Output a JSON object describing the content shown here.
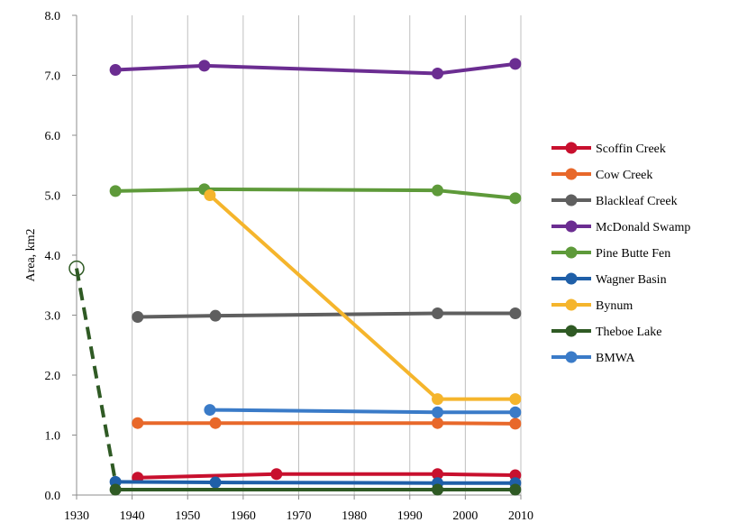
{
  "chart_data": {
    "type": "line",
    "title": "",
    "xlabel": "",
    "ylabel": "Area, km2",
    "xlim": [
      1930,
      2010
    ],
    "ylim": [
      0,
      8
    ],
    "x_ticks": [
      "1930",
      "1940",
      "1950",
      "1960",
      "1970",
      "1980",
      "1990",
      "2000",
      "2010"
    ],
    "y_ticks": [
      "0.0",
      "1.0",
      "2.0",
      "3.0",
      "4.0",
      "5.0",
      "6.0",
      "7.0",
      "8.0"
    ],
    "grid": "vertical",
    "legend_position": "right",
    "series": [
      {
        "name": "Scoffin Creek",
        "color": "#c8102e",
        "points": [
          [
            1941,
            0.29
          ],
          [
            1966,
            0.35
          ],
          [
            1995,
            0.35
          ],
          [
            2009,
            0.33
          ]
        ]
      },
      {
        "name": "Cow Creek",
        "color": "#e8682a",
        "points": [
          [
            1941,
            1.2
          ],
          [
            1955,
            1.2
          ],
          [
            1995,
            1.2
          ],
          [
            2009,
            1.19
          ]
        ]
      },
      {
        "name": "Blackleaf Creek",
        "color": "#5f5f5f",
        "points": [
          [
            1941,
            2.97
          ],
          [
            1955,
            2.99
          ],
          [
            1995,
            3.03
          ],
          [
            2009,
            3.03
          ]
        ]
      },
      {
        "name": "McDonald Swamp",
        "color": "#6b2d91",
        "points": [
          [
            1937,
            7.09
          ],
          [
            1953,
            7.16
          ],
          [
            1995,
            7.03
          ],
          [
            2009,
            7.19
          ]
        ]
      },
      {
        "name": "Pine Butte Fen",
        "color": "#5e9a3a",
        "points": [
          [
            1937,
            5.07
          ],
          [
            1953,
            5.1
          ],
          [
            1995,
            5.08
          ],
          [
            2009,
            4.95
          ]
        ]
      },
      {
        "name": "Wagner Basin",
        "color": "#1f5fa8",
        "points": [
          [
            1937,
            0.22
          ],
          [
            1955,
            0.21
          ],
          [
            1995,
            0.2
          ],
          [
            2009,
            0.2
          ]
        ]
      },
      {
        "name": "Bynum",
        "color": "#f5b52c",
        "points": [
          [
            1954,
            5.0
          ],
          [
            1995,
            1.6
          ],
          [
            2009,
            1.6
          ]
        ]
      },
      {
        "name": "Theboe Lake",
        "color": "#2f5a24",
        "points": [
          [
            1937,
            0.09
          ],
          [
            1995,
            0.09
          ],
          [
            2009,
            0.09
          ]
        ],
        "dashed_lead": {
          "from": [
            1930,
            3.78
          ],
          "to": [
            1937,
            0.22
          ]
        }
      },
      {
        "name": "BMWA",
        "color": "#3a7bc8",
        "points": [
          [
            1954,
            1.42
          ],
          [
            1995,
            1.38
          ],
          [
            2009,
            1.38
          ]
        ]
      }
    ]
  }
}
